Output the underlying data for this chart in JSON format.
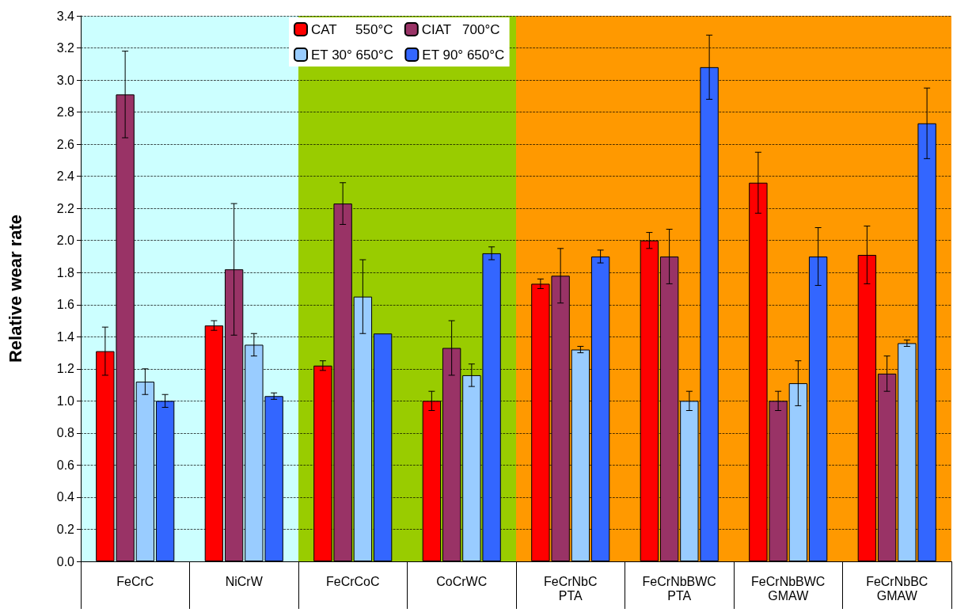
{
  "chart_data": {
    "type": "bar",
    "ylabel": "Relative wear rate",
    "categories": [
      "FeCrC",
      "NiCrW",
      "FeCrCoC",
      "CoCrWC",
      "FeCrNbC\nPTA",
      "FeCrNbBWC\nPTA",
      "FeCrNbBWC\nGMAW",
      "FeCrNbBC\nGMAW"
    ],
    "series": [
      {
        "name": "CAT     550°C",
        "color": "#ff0000",
        "values": [
          1.31,
          1.47,
          1.22,
          1.0,
          1.73,
          2.0,
          2.36,
          1.91
        ],
        "errors": [
          0.15,
          0.03,
          0.03,
          0.06,
          0.03,
          0.05,
          0.19,
          0.18
        ]
      },
      {
        "name": "CIAT   700°C",
        "color": "#993366",
        "values": [
          2.91,
          1.82,
          2.23,
          1.33,
          1.78,
          1.9,
          1.0,
          1.17
        ],
        "errors": [
          0.27,
          0.41,
          0.13,
          0.17,
          0.17,
          0.17,
          0.06,
          0.11
        ]
      },
      {
        "name": "ET 30° 650°C",
        "color": "#99ccff",
        "values": [
          1.12,
          1.35,
          1.65,
          1.16,
          1.32,
          1.0,
          1.11,
          1.36
        ],
        "errors": [
          0.08,
          0.07,
          0.23,
          0.07,
          0.02,
          0.06,
          0.14,
          0.02
        ]
      },
      {
        "name": "ET 90° 650°C",
        "color": "#3366ff",
        "values": [
          1.0,
          1.03,
          1.42,
          1.92,
          1.9,
          3.08,
          1.9,
          2.73
        ],
        "errors": [
          0.04,
          0.02,
          null,
          0.04,
          0.04,
          0.2,
          0.18,
          0.22
        ]
      }
    ],
    "ylim": [
      0,
      3.4
    ],
    "yticks": [
      {
        "value": 0,
        "label": "0.0"
      },
      {
        "value": 0.2,
        "label": "0.2"
      },
      {
        "value": 0.4,
        "label": "0.4"
      },
      {
        "value": 0.6,
        "label": "0.6"
      },
      {
        "value": 0.8,
        "label": "0.8"
      },
      {
        "value": 1,
        "label": "1.0"
      },
      {
        "value": 1.2,
        "label": "1.2"
      },
      {
        "value": 1.4,
        "label": "1.4"
      },
      {
        "value": 1.6,
        "label": "1.6"
      },
      {
        "value": 1.8,
        "label": "1.8"
      },
      {
        "value": 2,
        "label": "2.0"
      },
      {
        "value": 2.2,
        "label": "2.2"
      },
      {
        "value": 2.4,
        "label": "2.4"
      },
      {
        "value": 2.6,
        "label": "2.6"
      },
      {
        "value": 2.8,
        "label": "2.8"
      },
      {
        "value": 3,
        "label": "3.0"
      },
      {
        "value": 3.2,
        "label": "3.2"
      },
      {
        "value": 3.4,
        "label": "3.4"
      }
    ],
    "grid": "y",
    "legend": "top",
    "bands": [
      {
        "axis": "x",
        "from": "FeCrC",
        "to": "NiCrW",
        "color": "#ccffff"
      },
      {
        "axis": "x",
        "from": "FeCrCoC",
        "to": "CoCrWC",
        "color": "#99cc00"
      },
      {
        "axis": "x",
        "from": "FeCrNbC\nPTA",
        "to": "FeCrNbBC\nGMAW",
        "color": "#ff9900"
      }
    ]
  }
}
